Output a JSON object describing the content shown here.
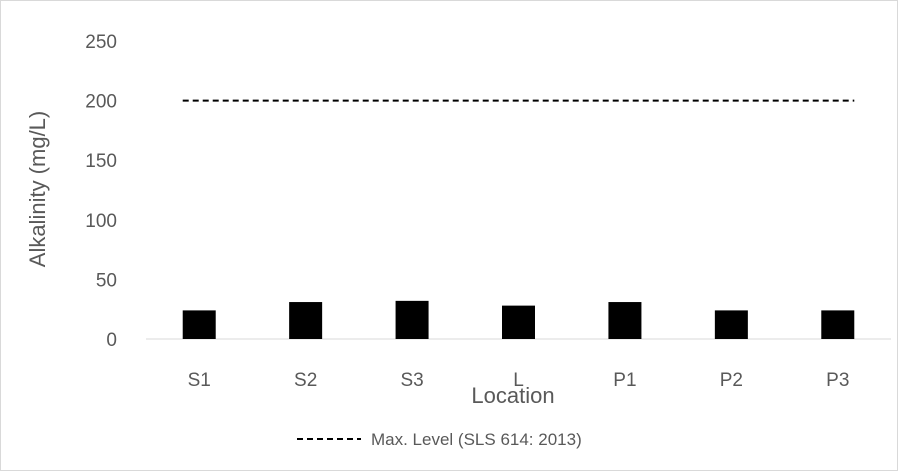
{
  "chart_data": {
    "type": "bar",
    "categories": [
      "S1",
      "S2",
      "S3",
      "L",
      "P1",
      "P2",
      "P3"
    ],
    "series": [
      {
        "values": [
          24,
          31,
          32,
          28,
          31,
          24,
          24
        ],
        "color": "#000000"
      }
    ],
    "reference_line": {
      "name": "Max. Level (SLS 614: 2013)",
      "value": 200,
      "style": "dashed",
      "color": "#000000"
    },
    "xlabel": "Location",
    "ylabel": "Alkalinity (mg/L)",
    "ylim": [
      0,
      250
    ],
    "yticks": [
      0,
      50,
      100,
      150,
      200,
      250
    ],
    "grid": false,
    "legend_position": "bottom"
  }
}
